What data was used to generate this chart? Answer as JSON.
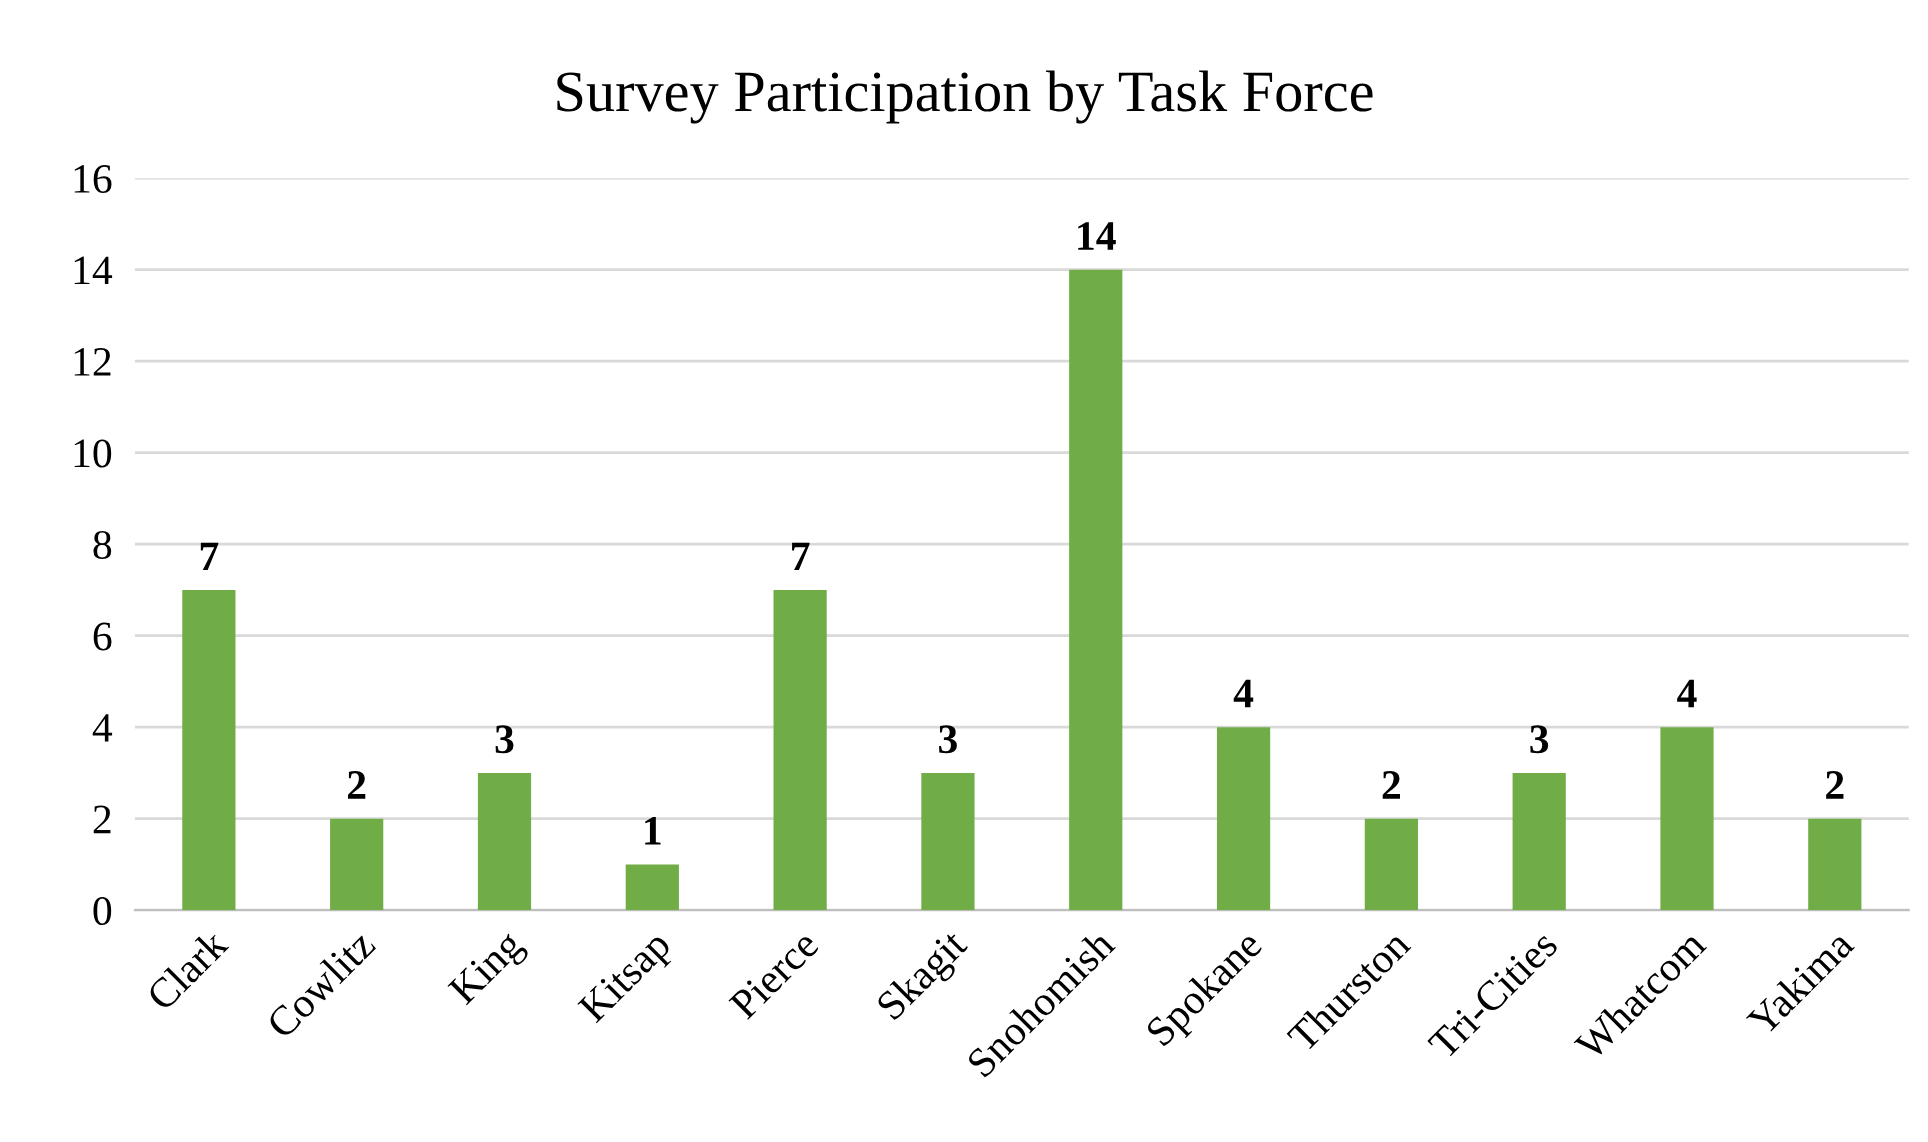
{
  "chart_data": {
    "type": "bar",
    "title": "Survey Participation by Task Force",
    "categories": [
      "Clark",
      "Cowlitz",
      "King",
      "Kitsap",
      "Pierce",
      "Skagit",
      "Snohomish",
      "Spokane",
      "Thurston",
      "Tri-Cities",
      "Whatcom",
      "Yakima"
    ],
    "values": [
      7,
      2,
      3,
      1,
      7,
      3,
      14,
      4,
      2,
      3,
      4,
      2
    ],
    "color": "#70ad47",
    "ylim": [
      0,
      16
    ],
    "yticks": [
      0,
      2,
      4,
      6,
      8,
      10,
      12,
      14,
      16
    ],
    "grid": "y",
    "data_labels": true
  }
}
